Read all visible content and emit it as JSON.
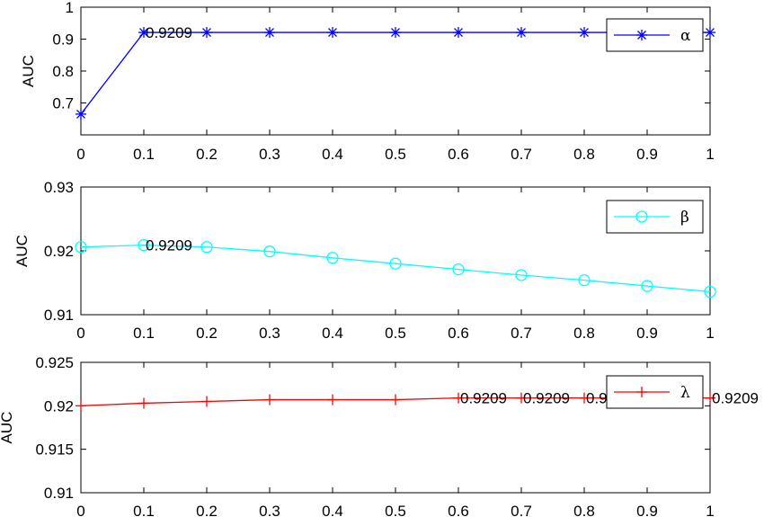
{
  "chart_data": [
    {
      "type": "line",
      "ylabel": "AUC",
      "xlim": [
        0,
        1
      ],
      "ylim": [
        0.6,
        1
      ],
      "x": [
        0,
        0.1,
        0.2,
        0.3,
        0.4,
        0.5,
        0.6,
        0.7,
        0.8,
        0.9,
        1
      ],
      "x_ticks": [
        "0",
        "0.1",
        "0.2",
        "0.3",
        "0.4",
        "0.5",
        "0.6",
        "0.7",
        "0.8",
        "0.9",
        "1"
      ],
      "y_ticks": [
        0.7,
        0.8,
        0.9,
        1
      ],
      "y_tick_labels": [
        "0.7",
        "0.8",
        "0.9",
        "1"
      ],
      "series": [
        {
          "name": "α",
          "color": "#0000ff",
          "marker": "asterisk",
          "values": [
            0.665,
            0.9209,
            0.9209,
            0.9209,
            0.9209,
            0.9209,
            0.9209,
            0.9209,
            0.9209,
            0.9209,
            0.9209
          ]
        }
      ],
      "annotations": [
        {
          "x": 0.1,
          "y": 0.9209,
          "text": "0.9209"
        }
      ],
      "legend": "top-right"
    },
    {
      "type": "line",
      "ylabel": "AUC",
      "xlim": [
        0,
        1
      ],
      "ylim": [
        0.91,
        0.93
      ],
      "x": [
        0,
        0.1,
        0.2,
        0.3,
        0.4,
        0.5,
        0.6,
        0.7,
        0.8,
        0.9,
        1
      ],
      "x_ticks": [
        "0",
        "0.1",
        "0.2",
        "0.3",
        "0.4",
        "0.5",
        "0.6",
        "0.7",
        "0.8",
        "0.9",
        "1"
      ],
      "y_ticks": [
        0.91,
        0.92,
        0.93
      ],
      "y_tick_labels": [
        "0.91",
        "0.92",
        "0.93"
      ],
      "series": [
        {
          "name": "β",
          "color": "#00ffff",
          "marker": "circle",
          "values": [
            0.9206,
            0.9209,
            0.9206,
            0.9199,
            0.9189,
            0.918,
            0.9171,
            0.9162,
            0.9154,
            0.9145,
            0.9136
          ]
        }
      ],
      "annotations": [
        {
          "x": 0.1,
          "y": 0.9209,
          "text": "0.9209"
        }
      ],
      "legend": "top-right"
    },
    {
      "type": "line",
      "ylabel": "AUC",
      "xlim": [
        0,
        1
      ],
      "ylim": [
        0.91,
        0.925
      ],
      "x": [
        0,
        0.1,
        0.2,
        0.3,
        0.4,
        0.5,
        0.6,
        0.7,
        0.8,
        0.9,
        1
      ],
      "x_ticks": [
        "0",
        "0.1",
        "0.2",
        "0.3",
        "0.4",
        "0.5",
        "0.6",
        "0.7",
        "0.8",
        "0.9",
        "1"
      ],
      "y_ticks": [
        0.91,
        0.915,
        0.92,
        0.925
      ],
      "y_tick_labels": [
        "0.91",
        "0.915",
        "0.92",
        "0.925"
      ],
      "series": [
        {
          "name": "λ",
          "color": "#ff0000",
          "marker": "plus",
          "values": [
            0.92,
            0.9203,
            0.9205,
            0.9207,
            0.9207,
            0.9207,
            0.9209,
            0.9209,
            0.9209,
            0.9209,
            0.9209
          ]
        }
      ],
      "annotations": [
        {
          "x": 0.6,
          "y": 0.9209,
          "text": "0.9209"
        },
        {
          "x": 0.7,
          "y": 0.9209,
          "text": "0.9209"
        },
        {
          "x": 0.8,
          "y": 0.9209,
          "text": "0.9209"
        },
        {
          "x": 0.9,
          "y": 0.9209,
          "text": "0.9209"
        },
        {
          "x": 1.0,
          "y": 0.9209,
          "text": "0.9209"
        }
      ],
      "legend": "top-right"
    }
  ]
}
